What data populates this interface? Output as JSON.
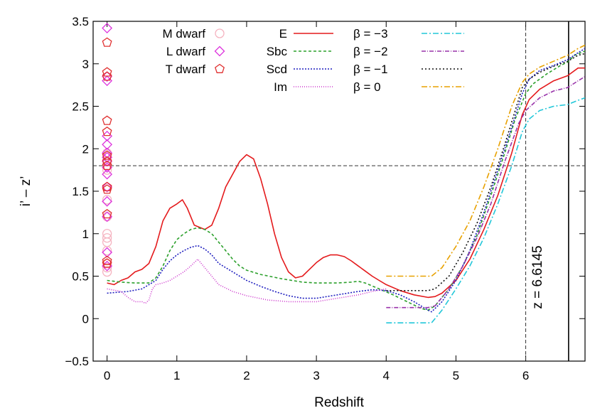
{
  "chart_data": {
    "type": "line",
    "title": "",
    "xlabel": "Redshift",
    "ylabel": "i’ – z’",
    "xlim": [
      -0.2,
      6.85
    ],
    "ylim": [
      -0.5,
      3.5
    ],
    "x_ticks": [
      "0",
      "1",
      "2",
      "3",
      "4",
      "5",
      "6"
    ],
    "y_ticks": [
      "-0.5",
      "0",
      "0.5",
      "1",
      "1.5",
      "2",
      "2.5",
      "3",
      "3.5"
    ],
    "hline": 1.8,
    "vline_dashed": 6.0,
    "vline_solid": 6.6145,
    "vline_label": "z = 6.6145",
    "legend_placement": "top",
    "series": [
      {
        "name": "E",
        "color": "#e41a1c",
        "dash": "solid",
        "points": [
          [
            0,
            0.42
          ],
          [
            0.1,
            0.4
          ],
          [
            0.2,
            0.45
          ],
          [
            0.3,
            0.48
          ],
          [
            0.4,
            0.55
          ],
          [
            0.5,
            0.58
          ],
          [
            0.6,
            0.65
          ],
          [
            0.7,
            0.85
          ],
          [
            0.8,
            1.15
          ],
          [
            0.9,
            1.3
          ],
          [
            1.0,
            1.35
          ],
          [
            1.08,
            1.4
          ],
          [
            1.15,
            1.3
          ],
          [
            1.25,
            1.1
          ],
          [
            1.4,
            1.05
          ],
          [
            1.5,
            1.1
          ],
          [
            1.6,
            1.3
          ],
          [
            1.7,
            1.55
          ],
          [
            1.8,
            1.7
          ],
          [
            1.9,
            1.85
          ],
          [
            2.0,
            1.93
          ],
          [
            2.1,
            1.88
          ],
          [
            2.2,
            1.65
          ],
          [
            2.3,
            1.35
          ],
          [
            2.4,
            1.0
          ],
          [
            2.5,
            0.72
          ],
          [
            2.6,
            0.55
          ],
          [
            2.7,
            0.48
          ],
          [
            2.8,
            0.5
          ],
          [
            2.9,
            0.58
          ],
          [
            3.0,
            0.66
          ],
          [
            3.1,
            0.72
          ],
          [
            3.2,
            0.75
          ],
          [
            3.3,
            0.75
          ],
          [
            3.4,
            0.73
          ],
          [
            3.5,
            0.68
          ],
          [
            3.6,
            0.62
          ],
          [
            3.7,
            0.56
          ],
          [
            3.8,
            0.5
          ],
          [
            3.9,
            0.45
          ],
          [
            4.0,
            0.4
          ],
          [
            4.2,
            0.33
          ],
          [
            4.4,
            0.28
          ],
          [
            4.6,
            0.25
          ],
          [
            4.7,
            0.26
          ],
          [
            4.8,
            0.3
          ],
          [
            5.0,
            0.45
          ],
          [
            5.2,
            0.7
          ],
          [
            5.4,
            1.05
          ],
          [
            5.6,
            1.45
          ],
          [
            5.8,
            1.95
          ],
          [
            5.95,
            2.4
          ],
          [
            6.05,
            2.58
          ],
          [
            6.2,
            2.7
          ],
          [
            6.4,
            2.8
          ],
          [
            6.6,
            2.86
          ],
          [
            6.75,
            2.95
          ],
          [
            6.85,
            2.95
          ]
        ]
      },
      {
        "name": "Sbc",
        "color": "#2ca02c",
        "dash": "4 3",
        "points": [
          [
            0,
            0.45
          ],
          [
            0.2,
            0.43
          ],
          [
            0.4,
            0.42
          ],
          [
            0.6,
            0.42
          ],
          [
            0.7,
            0.48
          ],
          [
            0.8,
            0.62
          ],
          [
            0.9,
            0.8
          ],
          [
            1.0,
            0.93
          ],
          [
            1.1,
            1.0
          ],
          [
            1.2,
            1.05
          ],
          [
            1.3,
            1.07
          ],
          [
            1.4,
            1.05
          ],
          [
            1.5,
            1.0
          ],
          [
            1.6,
            0.9
          ],
          [
            1.7,
            0.8
          ],
          [
            1.8,
            0.7
          ],
          [
            1.9,
            0.62
          ],
          [
            2.0,
            0.57
          ],
          [
            2.2,
            0.52
          ],
          [
            2.5,
            0.47
          ],
          [
            2.8,
            0.43
          ],
          [
            3.0,
            0.42
          ],
          [
            3.3,
            0.42
          ],
          [
            3.5,
            0.43
          ],
          [
            3.6,
            0.44
          ],
          [
            3.7,
            0.42
          ],
          [
            3.9,
            0.35
          ],
          [
            4.1,
            0.28
          ],
          [
            4.3,
            0.2
          ],
          [
            4.5,
            0.12
          ],
          [
            4.6,
            0.1
          ],
          [
            4.7,
            0.15
          ],
          [
            4.9,
            0.35
          ],
          [
            5.1,
            0.62
          ],
          [
            5.3,
            0.98
          ],
          [
            5.5,
            1.45
          ],
          [
            5.7,
            1.95
          ],
          [
            5.85,
            2.35
          ],
          [
            6.0,
            2.65
          ],
          [
            6.1,
            2.76
          ],
          [
            6.3,
            2.88
          ],
          [
            6.5,
            2.98
          ],
          [
            6.6,
            3.02
          ],
          [
            6.7,
            3.1
          ],
          [
            6.85,
            3.15
          ]
        ]
      },
      {
        "name": "Scd",
        "color": "#1f1fbf",
        "dash": "2 2",
        "points": [
          [
            0,
            0.3
          ],
          [
            0.3,
            0.32
          ],
          [
            0.5,
            0.35
          ],
          [
            0.7,
            0.45
          ],
          [
            0.8,
            0.58
          ],
          [
            0.9,
            0.68
          ],
          [
            1.0,
            0.75
          ],
          [
            1.1,
            0.8
          ],
          [
            1.2,
            0.84
          ],
          [
            1.3,
            0.86
          ],
          [
            1.4,
            0.82
          ],
          [
            1.5,
            0.75
          ],
          [
            1.6,
            0.65
          ],
          [
            1.8,
            0.55
          ],
          [
            2.0,
            0.45
          ],
          [
            2.2,
            0.38
          ],
          [
            2.4,
            0.32
          ],
          [
            2.6,
            0.27
          ],
          [
            2.8,
            0.24
          ],
          [
            3.0,
            0.24
          ],
          [
            3.3,
            0.28
          ],
          [
            3.6,
            0.32
          ],
          [
            3.8,
            0.34
          ],
          [
            4.0,
            0.33
          ],
          [
            4.2,
            0.28
          ],
          [
            4.4,
            0.2
          ],
          [
            4.6,
            0.1
          ],
          [
            4.65,
            0.08
          ],
          [
            4.8,
            0.2
          ],
          [
            5.0,
            0.45
          ],
          [
            5.2,
            0.8
          ],
          [
            5.4,
            1.25
          ],
          [
            5.6,
            1.75
          ],
          [
            5.8,
            2.25
          ],
          [
            5.95,
            2.65
          ],
          [
            6.05,
            2.82
          ],
          [
            6.2,
            2.92
          ],
          [
            6.4,
            2.98
          ],
          [
            6.6,
            3.05
          ],
          [
            6.75,
            3.13
          ],
          [
            6.85,
            3.18
          ]
        ]
      },
      {
        "name": "Im",
        "color": "#cc33cc",
        "dash": "1 2",
        "points": [
          [
            0,
            0.35
          ],
          [
            0.2,
            0.32
          ],
          [
            0.3,
            0.25
          ],
          [
            0.4,
            0.2
          ],
          [
            0.5,
            0.2
          ],
          [
            0.55,
            0.18
          ],
          [
            0.6,
            0.22
          ],
          [
            0.65,
            0.35
          ],
          [
            0.7,
            0.4
          ],
          [
            0.8,
            0.42
          ],
          [
            0.9,
            0.45
          ],
          [
            1.0,
            0.5
          ],
          [
            1.1,
            0.55
          ],
          [
            1.2,
            0.62
          ],
          [
            1.3,
            0.7
          ],
          [
            1.4,
            0.6
          ],
          [
            1.5,
            0.5
          ],
          [
            1.6,
            0.4
          ],
          [
            1.8,
            0.32
          ],
          [
            2.0,
            0.27
          ],
          [
            2.3,
            0.22
          ],
          [
            2.6,
            0.2
          ],
          [
            3.0,
            0.2
          ],
          [
            3.3,
            0.24
          ],
          [
            3.6,
            0.28
          ],
          [
            3.8,
            0.32
          ],
          [
            4.0,
            0.35
          ]
        ]
      },
      {
        "name": "β = −3",
        "color": "#22c7d9",
        "dash": "8 3 2 3",
        "points": [
          [
            4.0,
            -0.05
          ],
          [
            4.65,
            -0.05
          ],
          [
            4.8,
            0.1
          ],
          [
            5.0,
            0.35
          ],
          [
            5.2,
            0.62
          ],
          [
            5.4,
            0.95
          ],
          [
            5.6,
            1.35
          ],
          [
            5.8,
            1.8
          ],
          [
            5.95,
            2.2
          ],
          [
            6.05,
            2.35
          ],
          [
            6.2,
            2.45
          ],
          [
            6.4,
            2.5
          ],
          [
            6.6,
            2.52
          ],
          [
            6.75,
            2.57
          ],
          [
            6.85,
            2.6
          ]
        ]
      },
      {
        "name": "β = −2",
        "color": "#9933aa",
        "dash": "6 2 1 2",
        "points": [
          [
            4.0,
            0.13
          ],
          [
            4.6,
            0.13
          ],
          [
            4.7,
            0.15
          ],
          [
            4.9,
            0.35
          ],
          [
            5.1,
            0.62
          ],
          [
            5.3,
            0.95
          ],
          [
            5.5,
            1.35
          ],
          [
            5.7,
            1.85
          ],
          [
            5.9,
            2.3
          ],
          [
            6.0,
            2.45
          ],
          [
            6.2,
            2.6
          ],
          [
            6.4,
            2.68
          ],
          [
            6.6,
            2.72
          ],
          [
            6.75,
            2.8
          ],
          [
            6.85,
            2.85
          ]
        ]
      },
      {
        "name": "β = −1",
        "color": "#111111",
        "dash": "2 3",
        "points": [
          [
            4.0,
            0.33
          ],
          [
            4.6,
            0.33
          ],
          [
            4.7,
            0.35
          ],
          [
            4.9,
            0.5
          ],
          [
            5.1,
            0.78
          ],
          [
            5.3,
            1.12
          ],
          [
            5.5,
            1.55
          ],
          [
            5.7,
            2.05
          ],
          [
            5.85,
            2.45
          ],
          [
            5.95,
            2.72
          ],
          [
            6.05,
            2.82
          ],
          [
            6.2,
            2.9
          ],
          [
            6.4,
            2.97
          ],
          [
            6.6,
            3.03
          ],
          [
            6.75,
            3.1
          ],
          [
            6.85,
            3.12
          ]
        ]
      },
      {
        "name": "β =   0",
        "color": "#e8a100",
        "dash": "8 3 2 3",
        "points": [
          [
            4.0,
            0.5
          ],
          [
            4.65,
            0.5
          ],
          [
            4.8,
            0.6
          ],
          [
            5.0,
            0.85
          ],
          [
            5.2,
            1.15
          ],
          [
            5.4,
            1.55
          ],
          [
            5.6,
            2.0
          ],
          [
            5.8,
            2.5
          ],
          [
            5.95,
            2.78
          ],
          [
            6.05,
            2.88
          ],
          [
            6.2,
            2.96
          ],
          [
            6.4,
            3.03
          ],
          [
            6.6,
            3.1
          ],
          [
            6.75,
            3.18
          ],
          [
            6.85,
            3.22
          ]
        ]
      }
    ],
    "dwarfs": [
      {
        "name": "M dwarf",
        "color": "#f5b3c0",
        "marker": "circle",
        "y": [
          0.55,
          0.6,
          0.65,
          0.8,
          0.9,
          0.95,
          1.0,
          1.75,
          1.8,
          1.85,
          1.9,
          1.95,
          1.2,
          1.4
        ]
      },
      {
        "name": "L dwarf",
        "color": "#dd33dd",
        "marker": "diamond",
        "y": [
          3.42,
          2.85,
          2.8,
          2.15,
          2.05,
          1.95,
          1.9,
          1.85,
          1.78,
          1.7,
          1.55,
          1.38,
          1.2,
          0.78,
          0.62
        ]
      },
      {
        "name": "T dwarf",
        "color": "#e03030",
        "marker": "pentagon",
        "y": [
          3.25,
          2.9,
          2.85,
          2.33,
          2.2,
          1.92,
          1.85,
          1.8,
          1.55,
          1.52,
          1.23,
          0.68,
          0.65
        ]
      }
    ]
  }
}
